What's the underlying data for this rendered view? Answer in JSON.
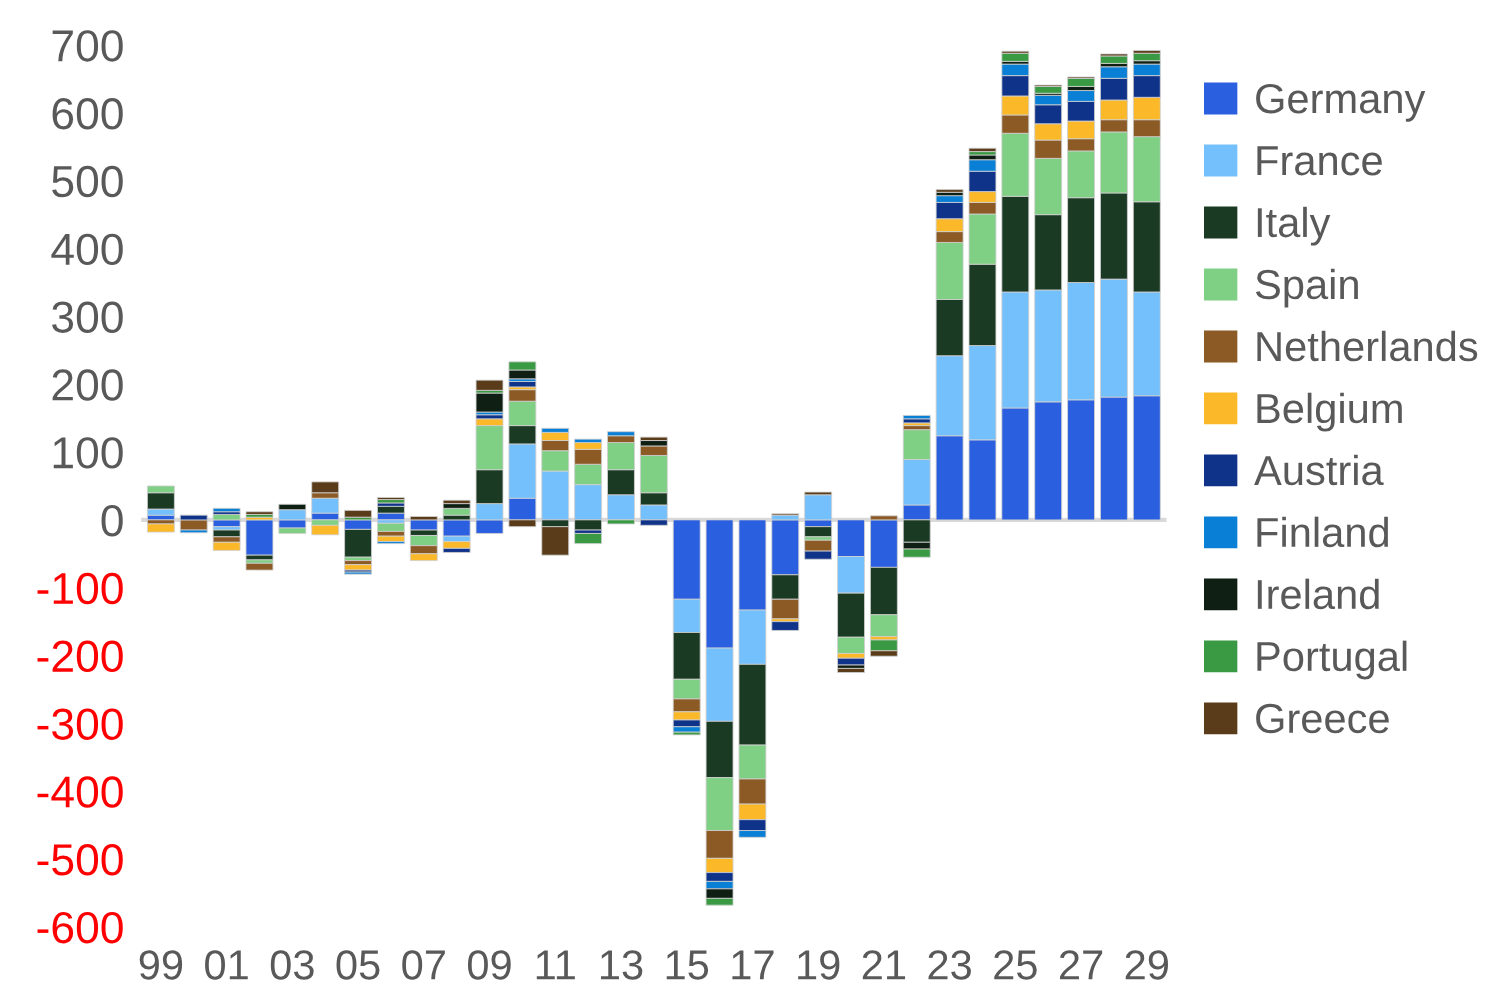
{
  "chart_data": {
    "type": "bar",
    "stacked": true,
    "legend": "right",
    "grid": false,
    "categories": [
      "99",
      null,
      "01",
      null,
      "03",
      null,
      "05",
      null,
      "07",
      null,
      "09",
      null,
      "11",
      null,
      "13",
      null,
      "15",
      null,
      "17",
      null,
      "19",
      null,
      "21",
      null,
      "23",
      null,
      "25",
      null,
      "27",
      null,
      "29"
    ],
    "ylim": [
      -600,
      700
    ],
    "ref_lines": [
      {
        "axis": "y",
        "value": 0,
        "color": "#d9d9d9"
      }
    ],
    "yticks": [
      -600,
      -500,
      -400,
      -300,
      -200,
      -100,
      0,
      100,
      200,
      300,
      400,
      500,
      600,
      700
    ],
    "series": [
      {
        "name": "Germany",
        "color": "#2a5fe0",
        "values": [
          7,
          0,
          -10,
          -52,
          -12,
          10,
          -14,
          10,
          -15,
          -24,
          -20,
          32,
          0,
          0,
          0,
          0,
          -117,
          -189,
          -133,
          -81,
          -10,
          -54,
          -70,
          22,
          124,
          118,
          165,
          174,
          177,
          181,
          183
        ]
      },
      {
        "name": "France",
        "color": "#74c0fc",
        "values": [
          9,
          0,
          -5,
          0,
          15,
          22,
          0,
          -5,
          0,
          -8,
          24,
          80,
          72,
          52,
          37,
          22,
          -49,
          -108,
          -80,
          7,
          37,
          -54,
          0,
          67,
          118,
          139,
          171,
          165,
          173,
          174,
          153
        ]
      },
      {
        "name": "Italy",
        "color": "#1b3a24",
        "values": [
          24,
          0,
          -10,
          -7,
          0,
          0,
          -41,
          10,
          -8,
          7,
          50,
          27,
          -10,
          -15,
          37,
          18,
          -69,
          -83,
          -119,
          -36,
          -15,
          -65,
          -70,
          -33,
          83,
          120,
          141,
          111,
          125,
          127,
          133
        ]
      },
      {
        "name": "Spain",
        "color": "#7fcf84",
        "values": [
          10,
          0,
          8,
          -5,
          -8,
          -8,
          -5,
          -12,
          -15,
          10,
          65,
          36,
          30,
          30,
          40,
          55,
          -29,
          -78,
          -50,
          0,
          -5,
          -24,
          -32,
          44,
          84,
          74,
          93,
          83,
          69,
          90,
          96
        ]
      },
      {
        "name": "Netherlands",
        "color": "#8b5a25",
        "values": [
          -6,
          -15,
          -8,
          -10,
          0,
          8,
          -6,
          -7,
          -12,
          0,
          0,
          17,
          15,
          22,
          10,
          14,
          -19,
          -41,
          -37,
          -29,
          -16,
          0,
          6,
          6,
          16,
          17,
          27,
          27,
          18,
          18,
          25
        ]
      },
      {
        "name": "Belgium",
        "color": "#fbb829",
        "values": [
          -12,
          0,
          -12,
          4,
          0,
          -14,
          -8,
          -8,
          -10,
          -10,
          10,
          4,
          12,
          10,
          0,
          0,
          -12,
          -21,
          -23,
          -4,
          0,
          -7,
          -5,
          4,
          19,
          16,
          28,
          24,
          26,
          29,
          33
        ]
      },
      {
        "name": "Austria",
        "color": "#10338a",
        "values": [
          0,
          7,
          4,
          0,
          0,
          0,
          -3,
          5,
          0,
          -6,
          6,
          8,
          0,
          -5,
          0,
          -8,
          -10,
          -13,
          -16,
          -13,
          -12,
          -10,
          0,
          6,
          24,
          30,
          30,
          28,
          29,
          32,
          32
        ]
      },
      {
        "name": "Finland",
        "color": "#0a7fd6",
        "values": [
          0,
          -4,
          5,
          0,
          0,
          0,
          -3,
          -3,
          0,
          0,
          4,
          4,
          6,
          5,
          6,
          0,
          -8,
          -11,
          -10,
          0,
          0,
          0,
          0,
          5,
          10,
          17,
          17,
          14,
          16,
          17,
          17
        ]
      },
      {
        "name": "Ireland",
        "color": "#0f1f14",
        "values": [
          0,
          0,
          0,
          0,
          8,
          0,
          0,
          0,
          0,
          7,
          28,
          13,
          0,
          0,
          0,
          8,
          0,
          -14,
          0,
          0,
          0,
          -5,
          0,
          -10,
          5,
          7,
          4,
          3,
          6,
          5,
          5
        ]
      },
      {
        "name": "Portugal",
        "color": "#3a9a44",
        "values": [
          0,
          0,
          0,
          4,
          0,
          0,
          4,
          5,
          0,
          0,
          4,
          12,
          0,
          -15,
          -6,
          0,
          -4,
          -10,
          0,
          0,
          0,
          0,
          -16,
          -12,
          0,
          5,
          12,
          10,
          12,
          11,
          11
        ]
      },
      {
        "name": "Greece",
        "color": "#5a3c1a",
        "values": [
          0,
          0,
          0,
          4,
          0,
          16,
          10,
          3,
          5,
          5,
          15,
          -10,
          -42,
          0,
          0,
          5,
          0,
          0,
          0,
          2,
          4,
          -6,
          -8,
          0,
          4,
          5,
          3,
          2,
          2,
          3,
          4
        ]
      }
    ]
  }
}
